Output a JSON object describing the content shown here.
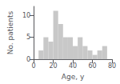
{
  "chart_data": {
    "type": "histogram",
    "bins": [
      0,
      5,
      10,
      15,
      20,
      25,
      30,
      35,
      40,
      45,
      50,
      55,
      60,
      65,
      70,
      75,
      80
    ],
    "values": [
      0,
      2,
      5,
      4,
      11,
      8,
      5,
      5,
      3,
      5,
      3,
      2,
      1,
      2,
      3,
      0
    ],
    "color": "#c8c8c8",
    "xlabel": "Age, y",
    "ylabel": "No. patients",
    "xlim": [
      0,
      80
    ],
    "ylim": [
      0,
      12
    ],
    "xticks": [
      0,
      20,
      40,
      60,
      80
    ],
    "yticks": [
      0,
      5,
      10
    ],
    "grid": false
  }
}
